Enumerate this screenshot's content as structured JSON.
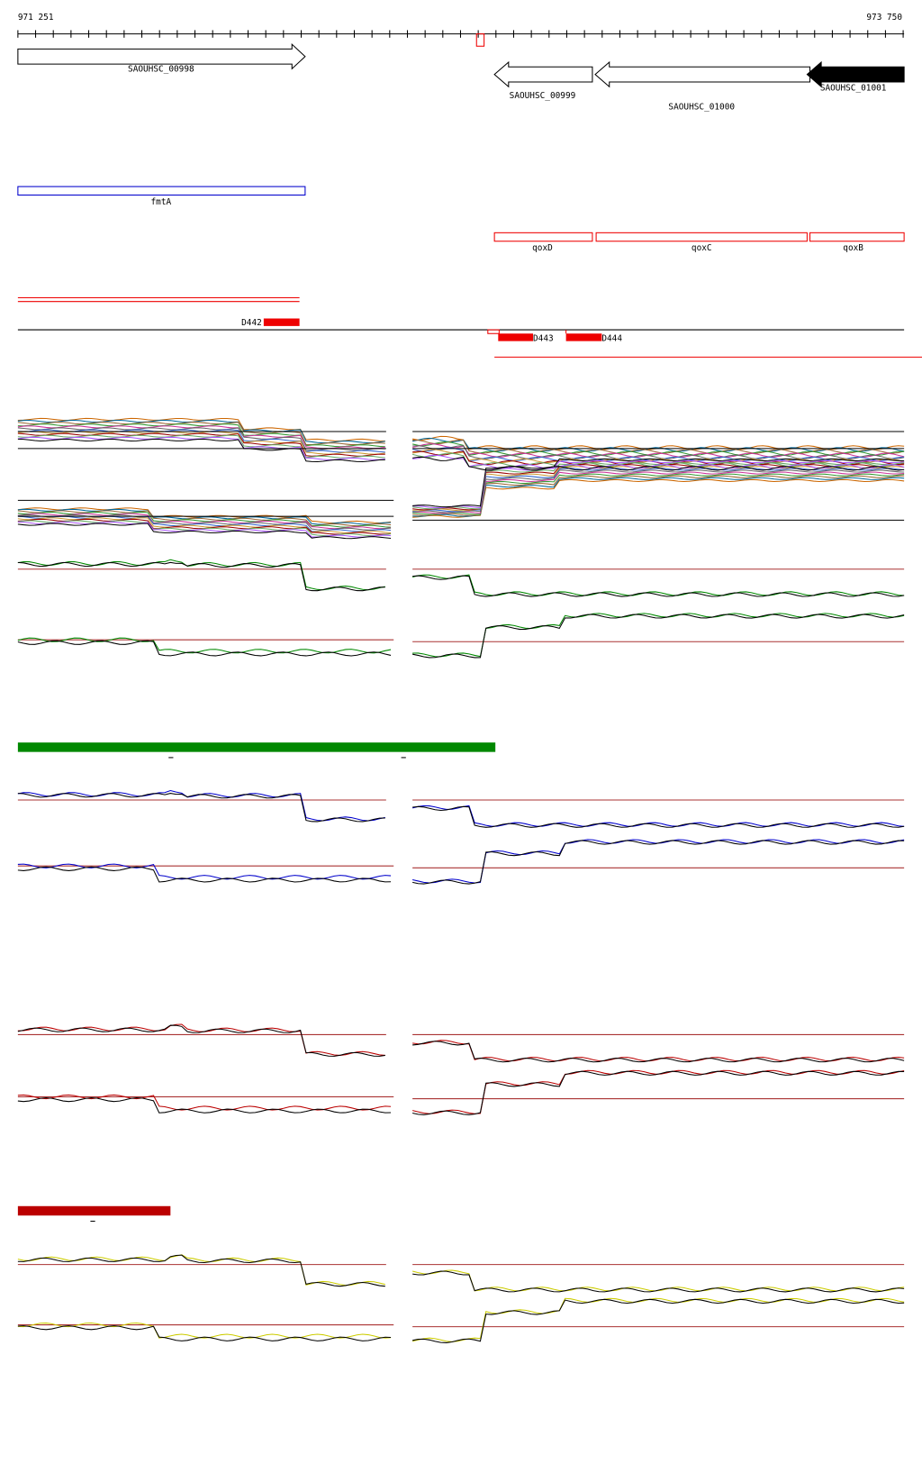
{
  "axis": {
    "start": "971 251",
    "end": "973 750"
  },
  "genes": [
    {
      "label": "SAOUHSC_00998"
    },
    {
      "label": "SAOUHSC_00999"
    },
    {
      "label": "SAOUHSC_01000"
    },
    {
      "label": "SAOUHSC_01001"
    }
  ],
  "operons": [
    {
      "label": "fmtA"
    },
    {
      "label": "qoxD"
    },
    {
      "label": "qoxC"
    },
    {
      "label": "qoxB"
    }
  ],
  "probes": [
    {
      "label": "D442"
    },
    {
      "label": "D443"
    },
    {
      "label": "D444"
    }
  ]
}
